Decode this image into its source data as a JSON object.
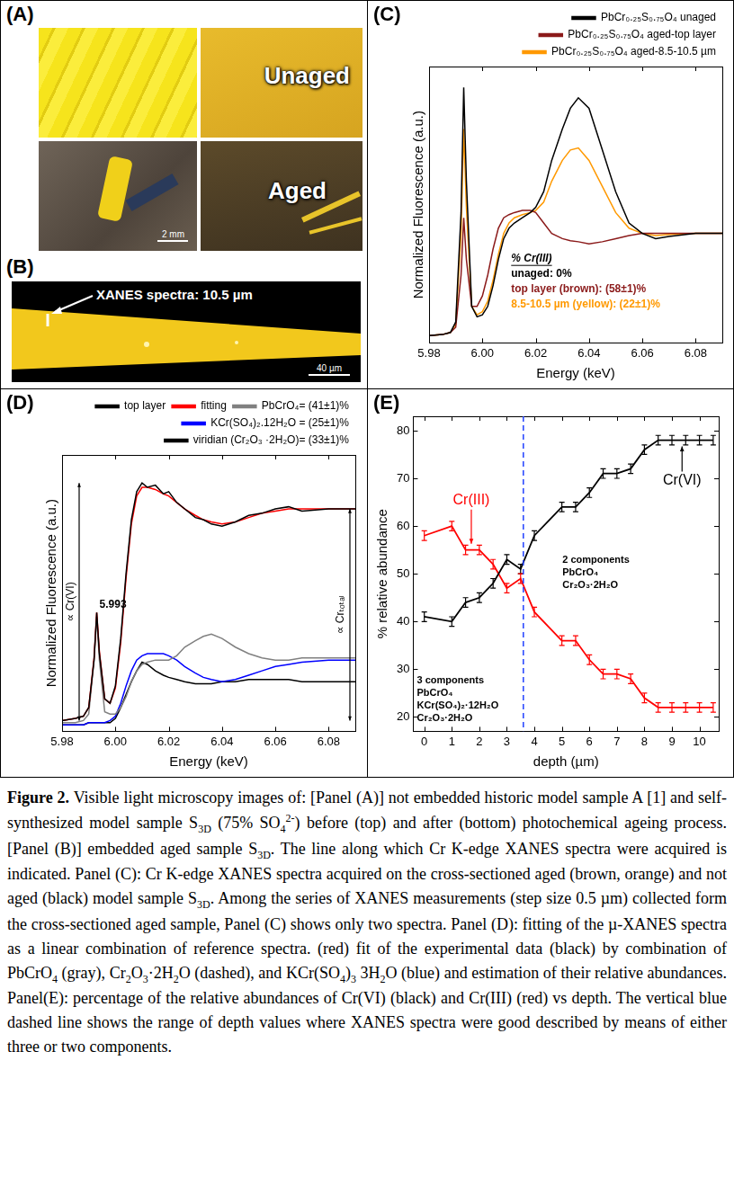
{
  "chart_data": [
    {
      "panel_label": "(C)",
      "type": "line",
      "x_label": "Energy (keV)",
      "y_label": "Normalized Fluorescence (a.u.)",
      "x": [
        5.98,
        5.985,
        5.988,
        5.99,
        5.992,
        5.993,
        5.994,
        5.996,
        5.998,
        6.0,
        6.002,
        6.004,
        6.006,
        6.008,
        6.01,
        6.012,
        6.015,
        6.018,
        6.02,
        6.023,
        6.026,
        6.03,
        6.033,
        6.036,
        6.04,
        6.045,
        6.05,
        6.055,
        6.06,
        6.065,
        6.07,
        6.08,
        6.09
      ],
      "series": [
        {
          "name": "PbCr₀.₂₅S₀.₇₅O₄ unaged",
          "color": "#000000",
          "values": [
            0.02,
            0.03,
            0.05,
            0.15,
            1.2,
            2.4,
            1.5,
            0.3,
            0.2,
            0.22,
            0.3,
            0.5,
            0.75,
            0.95,
            1.05,
            1.1,
            1.15,
            1.2,
            1.25,
            1.4,
            1.7,
            2.0,
            2.2,
            2.3,
            2.2,
            1.8,
            1.4,
            1.1,
            1.0,
            0.95,
            0.97,
            1.0,
            1.0
          ]
        },
        {
          "name": "PbCr₀.₂₅S₀.₇₅O₄ aged-top layer",
          "color": "#8b1a1a",
          "values": [
            0.02,
            0.03,
            0.05,
            0.1,
            0.6,
            1.15,
            0.75,
            0.3,
            0.3,
            0.4,
            0.6,
            0.85,
            1.05,
            1.15,
            1.18,
            1.2,
            1.22,
            1.22,
            1.2,
            1.1,
            1.0,
            0.95,
            0.93,
            0.92,
            0.9,
            0.92,
            0.95,
            0.98,
            1.0,
            1.0,
            1.0,
            1.0,
            1.0
          ]
        },
        {
          "name": "PbCr₀.₂₅S₀.₇₅O₄ aged-8.5-10.5 µm",
          "color": "#ff9900",
          "values": [
            0.02,
            0.03,
            0.05,
            0.13,
            1.0,
            2.0,
            1.25,
            0.3,
            0.22,
            0.25,
            0.35,
            0.55,
            0.8,
            1.0,
            1.1,
            1.15,
            1.18,
            1.2,
            1.22,
            1.3,
            1.5,
            1.7,
            1.8,
            1.82,
            1.7,
            1.45,
            1.2,
            1.05,
            1.0,
            0.98,
            0.99,
            1.0,
            1.0
          ]
        }
      ],
      "xlim": [
        5.98,
        6.09
      ],
      "xticks": [
        5.98,
        {
          "value": 6,
          "label": "6.00"
        },
        6.02,
        6.04,
        6.06,
        6.08
      ],
      "ylim": [
        -0.05,
        2.6
      ],
      "tick_labels": "x",
      "grid": false,
      "legend": "top right",
      "annotations": [
        {
          "text": "% Cr(III)",
          "color": "#000000"
        },
        {
          "text": "unaged: 0%",
          "color": "#000000"
        },
        {
          "text": "top layer (brown): (58±1)%",
          "color": "#8b1a1a"
        },
        {
          "text": "8.5-10.5 µm (yellow): (22±1)%",
          "color": "#ff9900"
        }
      ]
    },
    {
      "panel_label": "(D)",
      "type": "line",
      "x_label": "Energy (keV)",
      "y_label": "Normalized Fluorescence (a.u.)",
      "x": [
        5.98,
        5.985,
        5.988,
        5.99,
        5.992,
        5.993,
        5.994,
        5.996,
        5.998,
        6.0,
        6.002,
        6.004,
        6.006,
        6.008,
        6.01,
        6.012,
        6.015,
        6.018,
        6.02,
        6.023,
        6.026,
        6.03,
        6.033,
        6.036,
        6.04,
        6.045,
        6.05,
        6.055,
        6.06,
        6.065,
        6.07,
        6.08,
        6.09
      ],
      "series": [
        {
          "name": "top layer",
          "color": "#000000",
          "values": [
            0.02,
            0.03,
            0.04,
            0.08,
            0.3,
            0.52,
            0.33,
            0.12,
            0.1,
            0.18,
            0.4,
            0.7,
            0.95,
            1.08,
            1.12,
            1.1,
            1.11,
            1.07,
            1.08,
            1.03,
            1.0,
            0.96,
            0.95,
            0.93,
            0.92,
            0.94,
            0.97,
            0.98,
            1.0,
            1.01,
            0.99,
            1.0,
            1.0
          ]
        },
        {
          "name": "fitting",
          "color": "#ff0000",
          "values": [
            0.02,
            0.03,
            0.04,
            0.08,
            0.31,
            0.52,
            0.34,
            0.12,
            0.1,
            0.17,
            0.38,
            0.68,
            0.93,
            1.06,
            1.1,
            1.1,
            1.09,
            1.07,
            1.06,
            1.03,
            1.0,
            0.97,
            0.95,
            0.94,
            0.93,
            0.94,
            0.96,
            0.98,
            0.99,
            1.0,
            1.0,
            1.0,
            1.0
          ]
        },
        {
          "name": "PbCrO₄= (41±1)%",
          "color": "#808080",
          "values": [
            0.01,
            0.01,
            0.02,
            0.05,
            0.3,
            0.5,
            0.3,
            0.06,
            0.05,
            0.05,
            0.08,
            0.13,
            0.2,
            0.25,
            0.28,
            0.29,
            0.3,
            0.3,
            0.3,
            0.32,
            0.36,
            0.39,
            0.41,
            0.42,
            0.4,
            0.36,
            0.33,
            0.31,
            0.3,
            0.3,
            0.31,
            0.31,
            0.31
          ]
        },
        {
          "name": "KCr(SO₄)₂.12H₂O = (25±1)%",
          "color": "#0000ff",
          "values": [
            0,
            0,
            0,
            0.01,
            0.01,
            0.01,
            0.01,
            0.01,
            0.02,
            0.04,
            0.1,
            0.18,
            0.25,
            0.3,
            0.32,
            0.33,
            0.33,
            0.33,
            0.32,
            0.3,
            0.27,
            0.24,
            0.22,
            0.21,
            0.2,
            0.21,
            0.23,
            0.25,
            0.27,
            0.28,
            0.29,
            0.3,
            0.3
          ]
        },
        {
          "name": "viridian (Cr₂O₃ ·2H₂O)= (33±1)%",
          "color": "#000000",
          "values": [
            0,
            0,
            0,
            0.01,
            0.01,
            0.01,
            0.01,
            0.01,
            0.01,
            0.03,
            0.08,
            0.14,
            0.2,
            0.25,
            0.29,
            0.28,
            0.25,
            0.23,
            0.22,
            0.21,
            0.2,
            0.19,
            0.19,
            0.19,
            0.2,
            0.2,
            0.21,
            0.21,
            0.21,
            0.21,
            0.2,
            0.2,
            0.2
          ]
        }
      ],
      "xlim": [
        5.98,
        6.09
      ],
      "xticks": [
        5.98,
        {
          "value": 6,
          "label": "6.00"
        },
        6.02,
        6.04,
        6.06,
        6.08
      ],
      "ylim": [
        -0.03,
        1.25
      ],
      "tick_labels": "x",
      "grid": false,
      "legend": "top right",
      "annotations": [
        {
          "text": "5.993",
          "x": 5.993
        },
        {
          "text": "∝ Cr(VI)"
        },
        {
          "text": "∝ Crₜₒₜₐₗ"
        }
      ]
    },
    {
      "panel_label": "(E)",
      "type": "line",
      "x_label": "depth (µm)",
      "y_label": "% relative abundance",
      "x": [
        0,
        1,
        1.5,
        2,
        2.5,
        3,
        3.5,
        4,
        5,
        5.5,
        6,
        6.5,
        7,
        7.5,
        8,
        8.5,
        9,
        9.5,
        10,
        10.5
      ],
      "series": [
        {
          "name": "Cr(VI)",
          "color": "#000000",
          "values": [
            41,
            40,
            44,
            45,
            48,
            53,
            51,
            58,
            64,
            64,
            67,
            71,
            71,
            72,
            76,
            78,
            78,
            78,
            78,
            78
          ],
          "errors": [
            1,
            1,
            1,
            1,
            1,
            1,
            1,
            1,
            1,
            1,
            1,
            1,
            1,
            1,
            1,
            1,
            1,
            1,
            1,
            1
          ]
        },
        {
          "name": "Cr(III)",
          "color": "#ff0000",
          "values": [
            58,
            60,
            55,
            55,
            52,
            47,
            49,
            42,
            36,
            36,
            32,
            29,
            29,
            28,
            24,
            22,
            22,
            22,
            22,
            22
          ],
          "errors": [
            1,
            1,
            1,
            1,
            1,
            1,
            1,
            1,
            1,
            1,
            1,
            1,
            1,
            1,
            1,
            1,
            1,
            1,
            1,
            1
          ]
        }
      ],
      "xlim": [
        -0.4,
        10.7
      ],
      "xticks": [
        0,
        1,
        2,
        3,
        4,
        5,
        6,
        7,
        8,
        9,
        10
      ],
      "ylim": [
        17,
        83
      ],
      "yticks": [
        20,
        30,
        40,
        50,
        60,
        70,
        80
      ],
      "grid": false,
      "reference_line": {
        "x": 3.6,
        "color": "#2040ff",
        "line_style": "dashed"
      },
      "annotations": [
        {
          "text": "3 components",
          "items": [
            "PbCrO₄",
            "KCr(SO₄)₂·12H₂O",
            "Cr₂O₃·2H₂O"
          ]
        },
        {
          "text": "2 components",
          "items": [
            "PbCrO₄",
            "Cr₂O₃·2H₂O"
          ]
        }
      ]
    }
  ],
  "photo_panels": [
    {
      "panel_label": "(A)",
      "labels": [
        "Unaged",
        "Aged"
      ],
      "scale_bar": "2 mm"
    },
    {
      "panel_label": "(B)",
      "annotation": "XANES spectra: 10.5 µm",
      "scale_bar": "40 µm"
    }
  ],
  "caption": [
    {
      "text": "Figure 2.",
      "style": "bold"
    },
    {
      "text": " Visible light microscopy images of: [Panel (A)] not embedded historic model sample A [1] and self-synthesized model sample S"
    },
    {
      "text": "3D",
      "style": "sub"
    },
    {
      "text": " (75% SO"
    },
    {
      "text": "4",
      "style": "sub"
    },
    {
      "text": "2-",
      "style": "sup"
    },
    {
      "text": ") before (top) and after (bottom) photochemical ageing process. [Panel (B)] embedded aged sample S"
    },
    {
      "text": "3D",
      "style": "sub"
    },
    {
      "text": ". The line along which Cr K-edge XANES spectra were acquired is indicated. Panel (C): Cr K-edge XANES spectra acquired on the cross-sectioned aged (brown, orange) and not aged (black) model sample S"
    },
    {
      "text": "3D",
      "style": "sub"
    },
    {
      "text": ". Among the series of XANES measurements (step size 0.5 µm) collected form the cross-sectioned aged sample, Panel (C) shows only two spectra. Panel (D): fitting of the µ-XANES spectra as a linear combination of reference spectra. (red) fit of the experimental data (black) by combination of PbCrO"
    },
    {
      "text": "4",
      "style": "sub"
    },
    {
      "text": " (gray), Cr"
    },
    {
      "text": "2",
      "style": "sub"
    },
    {
      "text": "O"
    },
    {
      "text": "3",
      "style": "sub"
    },
    {
      "text": "·2H"
    },
    {
      "text": "2",
      "style": "sub"
    },
    {
      "text": "O (dashed), and KCr(SO"
    },
    {
      "text": "4",
      "style": "sub"
    },
    {
      "text": ")"
    },
    {
      "text": "3",
      "style": "sub"
    },
    {
      "text": " 3H"
    },
    {
      "text": "2",
      "style": "sub"
    },
    {
      "text": "O (blue) and estimation of their relative abundances. Panel(E): percentage of the relative abundances of Cr(VI) (black) and Cr(III) (red) vs depth. The vertical blue dashed line shows the range of depth values where XANES spectra were good described by means of either three or two components."
    }
  ]
}
